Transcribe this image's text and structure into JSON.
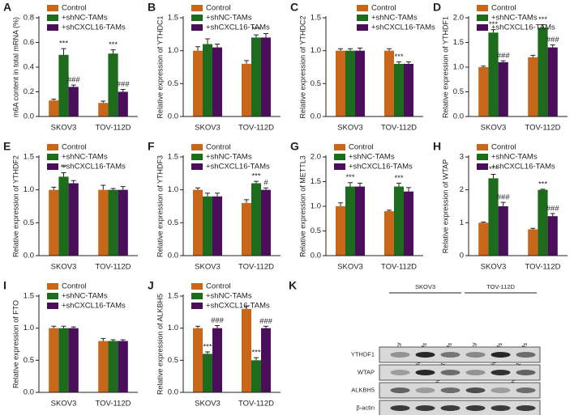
{
  "chart_data": [
    {
      "type": "bar",
      "panel": "A",
      "ylabel": "m6A content in total mRNA (%)",
      "categories": [
        "SKOV3",
        "TOV-112D"
      ],
      "ylim": [
        0,
        0.8
      ],
      "yticks": [
        {
          "value": 0,
          "label": "0.0"
        },
        0.2,
        0.4,
        0.6,
        0.8
      ],
      "legend_loc": "upper left",
      "series": [
        {
          "name": "Control",
          "color": "#c8661a",
          "values": [
            0.13,
            0.11
          ],
          "errors": [
            0.01,
            0.015
          ],
          "sig_labels": [
            null,
            null
          ]
        },
        {
          "name": "+shNC-TAMs",
          "color": "#1d6b1d",
          "values": [
            0.5,
            0.51
          ],
          "errors": [
            0.05,
            0.03
          ],
          "sig_labels": [
            "***",
            "***"
          ]
        },
        {
          "name": "+shCXCL16-TAMs",
          "color": "#4a0e5a",
          "values": [
            0.24,
            0.2
          ],
          "errors": [
            0.015,
            0.02
          ],
          "sig_labels": [
            "###",
            "###"
          ]
        }
      ]
    },
    {
      "type": "bar",
      "panel": "B",
      "ylabel": "Relative expression of YTHDC1",
      "categories": [
        "SKOV3",
        "TOV-112D"
      ],
      "ylim": [
        0,
        1.5
      ],
      "yticks": [
        {
          "value": 0,
          "label": "0.0"
        },
        0.5,
        {
          "value": 1,
          "label": "1.0"
        },
        1.5
      ],
      "legend_loc": "upper left",
      "series": [
        {
          "name": "Control",
          "color": "#c8661a",
          "values": [
            1.0,
            0.8
          ],
          "errors": [
            0.06,
            0.05
          ],
          "sig_labels": [
            null,
            null
          ]
        },
        {
          "name": "+shNC-TAMs",
          "color": "#1d6b1d",
          "values": [
            1.1,
            1.2
          ],
          "errors": [
            0.08,
            0.04
          ],
          "sig_labels": [
            null,
            "***"
          ]
        },
        {
          "name": "+shCXCL16-TAMs",
          "color": "#4a0e5a",
          "values": [
            1.05,
            1.2
          ],
          "errors": [
            0.05,
            0.06
          ],
          "sig_labels": [
            null,
            null
          ]
        }
      ]
    },
    {
      "type": "bar",
      "panel": "C",
      "ylabel": "Relative expression of YTHDC2",
      "categories": [
        "SKOV3",
        "TOV-112D"
      ],
      "ylim": [
        0,
        1.5
      ],
      "yticks": [
        {
          "value": 0,
          "label": "0.0"
        },
        0.5,
        {
          "value": 1,
          "label": "1.0"
        },
        1.5
      ],
      "legend_loc": "upper right",
      "series": [
        {
          "name": "Control",
          "color": "#c8661a",
          "values": [
            1.0,
            1.0
          ],
          "errors": [
            0.03,
            0.03
          ],
          "sig_labels": [
            null,
            null
          ]
        },
        {
          "name": "+shNC-TAMs",
          "color": "#1d6b1d",
          "values": [
            1.0,
            0.8
          ],
          "errors": [
            0.03,
            0.03
          ],
          "sig_labels": [
            null,
            "***"
          ]
        },
        {
          "name": "+shCXCL16-TAMs",
          "color": "#4a0e5a",
          "values": [
            1.0,
            0.8
          ],
          "errors": [
            0.04,
            0.03
          ],
          "sig_labels": [
            null,
            null
          ]
        }
      ]
    },
    {
      "type": "bar",
      "panel": "D",
      "ylabel": "Relative expression of YTHDF1",
      "categories": [
        "SKOV3",
        "TOV-112D"
      ],
      "ylim": [
        0,
        2
      ],
      "yticks": [
        {
          "value": 0,
          "label": "0.0"
        },
        0.5,
        {
          "value": 1,
          "label": "1.0"
        },
        1.5,
        {
          "value": 2,
          "label": "2.0"
        }
      ],
      "legend_loc": "upper left",
      "series": [
        {
          "name": "Control",
          "color": "#c8661a",
          "values": [
            1.0,
            1.2
          ],
          "errors": [
            0.02,
            0.04
          ],
          "sig_labels": [
            null,
            null
          ]
        },
        {
          "name": "+shNC-TAMs",
          "color": "#1d6b1d",
          "values": [
            1.7,
            1.8
          ],
          "errors": [
            0.06,
            0.06
          ],
          "sig_labels": [
            "***",
            "***"
          ]
        },
        {
          "name": "+shCXCL16-TAMs",
          "color": "#4a0e5a",
          "values": [
            1.1,
            1.4
          ],
          "errors": [
            0.03,
            0.05
          ],
          "sig_labels": [
            "###",
            "###"
          ]
        }
      ]
    },
    {
      "type": "bar",
      "panel": "E",
      "ylabel": "Relative expression of YTHDF2",
      "categories": [
        "SKOV3",
        "TOV-112D"
      ],
      "ylim": [
        0,
        1.5
      ],
      "yticks": [
        {
          "value": 0,
          "label": "0.0"
        },
        0.5,
        {
          "value": 1,
          "label": "1.0"
        },
        1.5
      ],
      "legend_loc": "upper left",
      "series": [
        {
          "name": "Control",
          "color": "#c8661a",
          "values": [
            1.0,
            1.0
          ],
          "errors": [
            0.04,
            0.07
          ],
          "sig_labels": [
            null,
            null
          ]
        },
        {
          "name": "+shNC-TAMs",
          "color": "#1d6b1d",
          "values": [
            1.2,
            1.0
          ],
          "errors": [
            0.06,
            0.02
          ],
          "sig_labels": [
            "**",
            null
          ]
        },
        {
          "name": "+shCXCL16-TAMs",
          "color": "#4a0e5a",
          "values": [
            1.1,
            1.0
          ],
          "errors": [
            0.04,
            0.05
          ],
          "sig_labels": [
            null,
            null
          ]
        }
      ]
    },
    {
      "type": "bar",
      "panel": "F",
      "ylabel": "Relative expression of YTHDF3",
      "categories": [
        "SKOV3",
        "TOV-112D"
      ],
      "ylim": [
        0,
        1.5
      ],
      "yticks": [
        {
          "value": 0,
          "label": "0.0"
        },
        0.5,
        {
          "value": 1,
          "label": "1.0"
        },
        1.5
      ],
      "legend_loc": "upper left",
      "series": [
        {
          "name": "Control",
          "color": "#c8661a",
          "values": [
            1.0,
            0.8
          ],
          "errors": [
            0.03,
            0.05
          ],
          "sig_labels": [
            null,
            null
          ]
        },
        {
          "name": "+shNC-TAMs",
          "color": "#1d6b1d",
          "values": [
            0.9,
            1.1
          ],
          "errors": [
            0.05,
            0.03
          ],
          "sig_labels": [
            null,
            "***"
          ]
        },
        {
          "name": "+shCXCL16-TAMs",
          "color": "#4a0e5a",
          "values": [
            0.9,
            1.0
          ],
          "errors": [
            0.05,
            0.03
          ],
          "sig_labels": [
            null,
            "#"
          ]
        }
      ]
    },
    {
      "type": "bar",
      "panel": "G",
      "ylabel": "Relative expression of METTL3",
      "categories": [
        "SKOV3",
        "TOV-112D"
      ],
      "ylim": [
        0,
        2
      ],
      "yticks": [
        {
          "value": 0,
          "label": "0.0"
        },
        0.5,
        {
          "value": 1,
          "label": "1.0"
        },
        1.5,
        {
          "value": 2,
          "label": "2.0"
        }
      ],
      "legend_loc": "upper left",
      "series": [
        {
          "name": "Control",
          "color": "#c8661a",
          "values": [
            1.0,
            0.9
          ],
          "errors": [
            0.07,
            0.02
          ],
          "sig_labels": [
            null,
            null
          ]
        },
        {
          "name": "+shNC-TAMs",
          "color": "#1d6b1d",
          "values": [
            1.4,
            1.4
          ],
          "errors": [
            0.08,
            0.07
          ],
          "sig_labels": [
            "***",
            "***"
          ]
        },
        {
          "name": "+shCXCL16-TAMs",
          "color": "#4a0e5a",
          "values": [
            1.4,
            1.3
          ],
          "errors": [
            0.07,
            0.08
          ],
          "sig_labels": [
            null,
            null
          ]
        }
      ]
    },
    {
      "type": "bar",
      "panel": "H",
      "ylabel": "Relative expression of WTAP",
      "categories": [
        "SKOV3",
        "TOV-112D"
      ],
      "ylim": [
        0,
        3
      ],
      "yticks": [
        0,
        1,
        2,
        3
      ],
      "legend_loc": "upper left",
      "series": [
        {
          "name": "Control",
          "color": "#c8661a",
          "values": [
            1.0,
            0.8
          ],
          "errors": [
            0.02,
            0.03
          ],
          "sig_labels": [
            null,
            null
          ]
        },
        {
          "name": "+shNC-TAMs",
          "color": "#1d6b1d",
          "values": [
            2.35,
            2.0
          ],
          "errors": [
            0.12,
            0.02
          ],
          "sig_labels": [
            "***",
            "***"
          ]
        },
        {
          "name": "+shCXCL16-TAMs",
          "color": "#4a0e5a",
          "values": [
            1.5,
            1.2
          ],
          "errors": [
            0.12,
            0.08
          ],
          "sig_labels": [
            "###",
            "###"
          ]
        }
      ]
    },
    {
      "type": "bar",
      "panel": "I",
      "ylabel": "Relative expression of FTO",
      "categories": [
        "SKOV3",
        "TOV-112D"
      ],
      "ylim": [
        0,
        1.5
      ],
      "yticks": [
        {
          "value": 0,
          "label": "0.0"
        },
        0.5,
        {
          "value": 1,
          "label": "1.0"
        },
        1.5
      ],
      "legend_loc": "upper left",
      "series": [
        {
          "name": "Control",
          "color": "#c8661a",
          "values": [
            1.0,
            0.8
          ],
          "errors": [
            0.03,
            0.04
          ],
          "sig_labels": [
            null,
            null
          ]
        },
        {
          "name": "+shNC-TAMs",
          "color": "#1d6b1d",
          "values": [
            1.0,
            0.8
          ],
          "errors": [
            0.03,
            0.02
          ],
          "sig_labels": [
            null,
            null
          ]
        },
        {
          "name": "+shCXCL16-TAMs",
          "color": "#4a0e5a",
          "values": [
            1.0,
            0.8
          ],
          "errors": [
            0.02,
            0.02
          ],
          "sig_labels": [
            null,
            null
          ]
        }
      ]
    },
    {
      "type": "bar",
      "panel": "J",
      "ylabel": "Relative expression of ALKBH5",
      "categories": [
        "SKOV3",
        "TOV-112D"
      ],
      "ylim": [
        0,
        1.5
      ],
      "yticks": [
        {
          "value": 0,
          "label": "0.0"
        },
        0.5,
        {
          "value": 1,
          "label": "1.0"
        },
        1.5
      ],
      "legend_loc": "upper left",
      "series": [
        {
          "name": "Control",
          "color": "#c8661a",
          "values": [
            1.0,
            1.3
          ],
          "errors": [
            0.03,
            0.04
          ],
          "sig_labels": [
            null,
            null
          ]
        },
        {
          "name": "+shNC-TAMs",
          "color": "#1d6b1d",
          "values": [
            0.6,
            0.5
          ],
          "errors": [
            0.03,
            0.04
          ],
          "sig_labels": [
            "***",
            "***"
          ]
        },
        {
          "name": "+shCXCL16-TAMs",
          "color": "#4a0e5a",
          "values": [
            1.0,
            1.0
          ],
          "errors": [
            0.04,
            0.03
          ],
          "sig_labels": [
            "###",
            "###"
          ]
        }
      ]
    }
  ],
  "blot": {
    "panel": "K",
    "groups": [
      "SKOV3",
      "TOV-112D"
    ],
    "lanes": [
      "Control",
      "+shNC-TAMs",
      "+shCXCL16-TAMs",
      "Control",
      "+shNC-TAMs",
      "+shCXCL16-TAMs"
    ],
    "proteins": [
      "YTHDF1",
      "WTAP",
      "ALKBH5",
      "β-actin"
    ]
  }
}
